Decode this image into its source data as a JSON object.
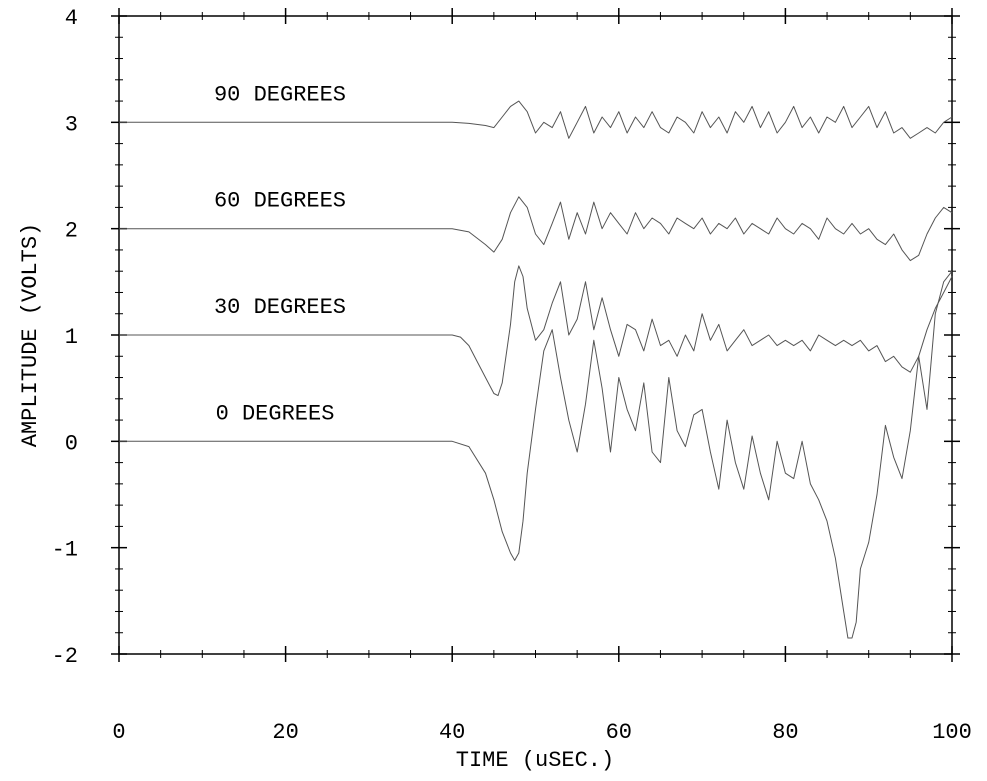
{
  "chart_data": {
    "type": "line",
    "title": "",
    "xlabel": "TIME (uSEC.)",
    "ylabel": "AMPLITUDE (VOLTS)",
    "xlim": [
      0,
      100
    ],
    "ylim": [
      -2,
      4
    ],
    "x_ticks": [
      "0",
      "20",
      "40",
      "60",
      "80",
      "100"
    ],
    "y_ticks": [
      "-2",
      "-1",
      "0",
      "1",
      "2",
      "3",
      "4"
    ],
    "grid": false,
    "legend": "none",
    "line_color": "#555555",
    "series": [
      {
        "name": "0 DEGREES",
        "x": [
          0,
          10,
          20,
          30,
          40,
          42,
          44,
          45,
          46,
          47,
          47.5,
          48,
          48.5,
          49,
          50,
          51,
          52,
          53,
          54,
          55,
          56,
          57,
          58,
          59,
          60,
          61,
          62,
          63,
          64,
          65,
          66,
          67,
          68,
          69,
          70,
          71,
          72,
          73,
          74,
          75,
          76,
          77,
          78,
          79,
          80,
          81,
          82,
          83,
          84,
          85,
          86,
          87,
          87.5,
          88,
          88.5,
          89,
          90,
          91,
          92,
          93,
          94,
          95,
          96,
          97,
          98,
          99,
          100
        ],
        "y": [
          0,
          0,
          0,
          0,
          0,
          -0.05,
          -0.3,
          -0.55,
          -0.85,
          -1.05,
          -1.12,
          -1.05,
          -0.75,
          -0.3,
          0.3,
          0.85,
          1.05,
          0.6,
          0.2,
          -0.1,
          0.35,
          0.95,
          0.5,
          -0.1,
          0.6,
          0.3,
          0.1,
          0.55,
          -0.1,
          -0.2,
          0.6,
          0.1,
          -0.05,
          0.25,
          0.3,
          -0.1,
          -0.45,
          0.2,
          -0.2,
          -0.45,
          0.05,
          -0.3,
          -0.55,
          0.0,
          -0.3,
          -0.35,
          0.0,
          -0.4,
          -0.55,
          -0.75,
          -1.1,
          -1.6,
          -1.85,
          -1.85,
          -1.7,
          -1.2,
          -0.95,
          -0.5,
          0.15,
          -0.15,
          -0.35,
          0.1,
          0.8,
          0.3,
          1.2,
          1.5,
          1.6
        ]
      },
      {
        "name": "30 DEGREES",
        "x": [
          0,
          10,
          20,
          30,
          40,
          41,
          42,
          43,
          44,
          45,
          45.5,
          46,
          47,
          47.5,
          48,
          48.5,
          49,
          50,
          51,
          52,
          53,
          54,
          55,
          56,
          57,
          58,
          59,
          60,
          61,
          62,
          63,
          64,
          65,
          66,
          67,
          68,
          69,
          70,
          71,
          72,
          73,
          74,
          75,
          76,
          77,
          78,
          79,
          80,
          81,
          82,
          83,
          84,
          85,
          86,
          87,
          88,
          89,
          90,
          91,
          92,
          93,
          94,
          95,
          96,
          97,
          98,
          99,
          100
        ],
        "y": [
          1,
          1,
          1,
          1,
          1,
          0.98,
          0.9,
          0.75,
          0.6,
          0.45,
          0.43,
          0.55,
          1.1,
          1.5,
          1.65,
          1.55,
          1.25,
          0.95,
          1.05,
          1.3,
          1.5,
          1.0,
          1.15,
          1.5,
          1.05,
          1.35,
          1.05,
          0.8,
          1.1,
          1.05,
          0.85,
          1.15,
          0.9,
          0.95,
          0.8,
          1.0,
          0.85,
          1.2,
          0.95,
          1.1,
          0.85,
          0.95,
          1.05,
          0.9,
          0.95,
          1.0,
          0.9,
          0.95,
          0.9,
          0.95,
          0.85,
          1.0,
          0.95,
          0.9,
          0.95,
          0.9,
          0.95,
          0.85,
          0.9,
          0.75,
          0.8,
          0.7,
          0.65,
          0.8,
          1.05,
          1.25,
          1.4,
          1.55
        ]
      },
      {
        "name": "60 DEGREES",
        "x": [
          0,
          10,
          20,
          30,
          40,
          42,
          44,
          45,
          46,
          47,
          48,
          49,
          50,
          51,
          52,
          53,
          54,
          55,
          56,
          57,
          58,
          59,
          60,
          61,
          62,
          63,
          64,
          65,
          66,
          67,
          68,
          69,
          70,
          71,
          72,
          73,
          74,
          75,
          76,
          77,
          78,
          79,
          80,
          81,
          82,
          83,
          84,
          85,
          86,
          87,
          88,
          89,
          90,
          91,
          92,
          93,
          94,
          95,
          96,
          97,
          98,
          99,
          100
        ],
        "y": [
          2,
          2,
          2,
          2,
          2,
          1.97,
          1.85,
          1.78,
          1.9,
          2.15,
          2.3,
          2.2,
          1.95,
          1.85,
          2.05,
          2.25,
          1.9,
          2.15,
          1.95,
          2.25,
          2.0,
          2.15,
          2.05,
          1.95,
          2.15,
          2.0,
          2.1,
          2.05,
          1.95,
          2.1,
          2.05,
          2.0,
          2.1,
          1.95,
          2.05,
          2.0,
          2.1,
          1.95,
          2.05,
          2.0,
          1.95,
          2.1,
          2.0,
          1.95,
          2.05,
          2.0,
          1.9,
          2.1,
          2.0,
          1.95,
          2.05,
          1.95,
          2.0,
          1.9,
          1.85,
          1.95,
          1.8,
          1.7,
          1.75,
          1.95,
          2.1,
          2.2,
          2.15
        ]
      },
      {
        "name": "90 DEGREES",
        "x": [
          0,
          10,
          20,
          30,
          40,
          42,
          44,
          45,
          46,
          47,
          48,
          49,
          50,
          51,
          52,
          53,
          54,
          55,
          56,
          57,
          58,
          59,
          60,
          61,
          62,
          63,
          64,
          65,
          66,
          67,
          68,
          69,
          70,
          71,
          72,
          73,
          74,
          75,
          76,
          77,
          78,
          79,
          80,
          81,
          82,
          83,
          84,
          85,
          86,
          87,
          88,
          89,
          90,
          91,
          92,
          93,
          94,
          95,
          96,
          97,
          98,
          99,
          100
        ],
        "y": [
          3,
          3,
          3,
          3,
          3,
          2.99,
          2.97,
          2.95,
          3.05,
          3.15,
          3.2,
          3.1,
          2.9,
          3.0,
          2.95,
          3.1,
          2.85,
          3.0,
          3.15,
          2.9,
          3.05,
          2.95,
          3.1,
          2.9,
          3.05,
          2.95,
          3.1,
          2.95,
          2.9,
          3.05,
          3.0,
          2.9,
          3.1,
          2.95,
          3.05,
          2.9,
          3.1,
          3.0,
          3.15,
          2.95,
          3.1,
          2.9,
          3.0,
          3.15,
          2.95,
          3.05,
          2.9,
          3.05,
          3.0,
          3.15,
          2.95,
          3.05,
          3.15,
          2.95,
          3.1,
          2.9,
          2.95,
          2.85,
          2.9,
          2.95,
          2.9,
          3.0,
          3.05
        ]
      }
    ]
  }
}
